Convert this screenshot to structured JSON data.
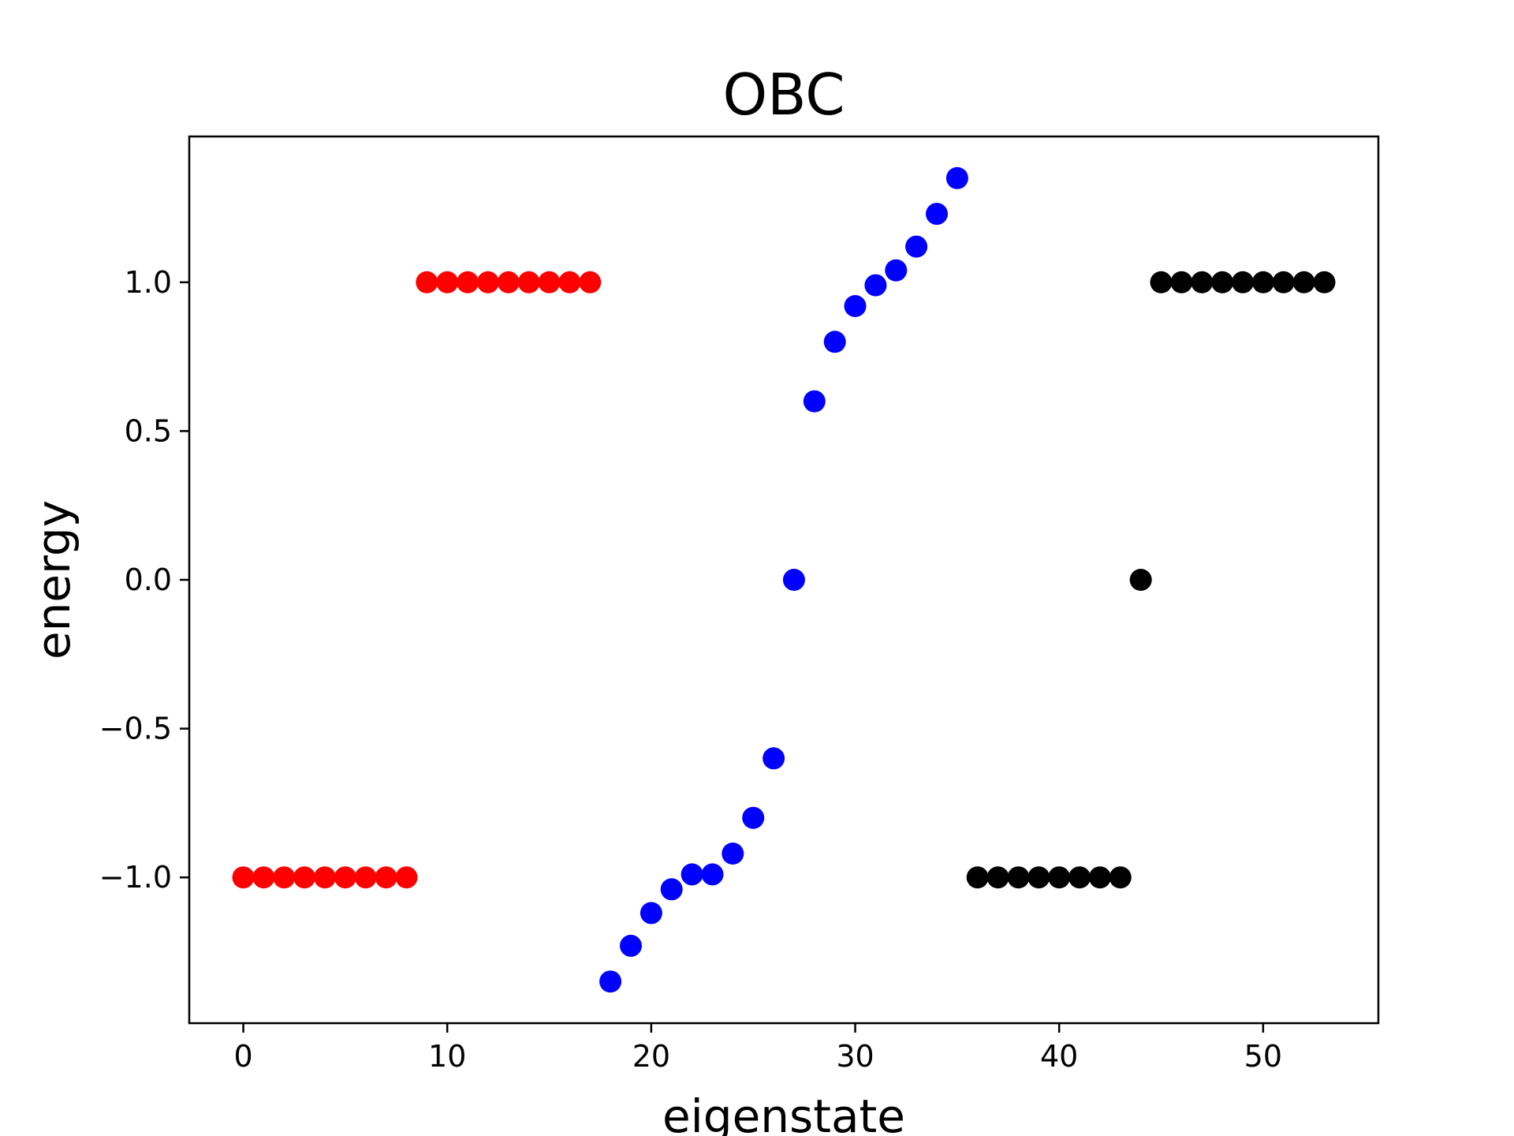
{
  "chart_data": {
    "type": "scatter",
    "title": "OBC",
    "xlabel": "eigenstate",
    "ylabel": "energy",
    "xlim": [
      -2.65,
      55.65
    ],
    "ylim": [
      -1.49,
      1.49
    ],
    "xticks": [
      0,
      10,
      20,
      30,
      40,
      50
    ],
    "xtick_labels": [
      "0",
      "10",
      "20",
      "30",
      "40",
      "50"
    ],
    "yticks": [
      -1.0,
      -0.5,
      0.0,
      0.5,
      1.0
    ],
    "ytick_labels": [
      "−1.0",
      "−0.5",
      "0.0",
      "0.5",
      "1.0"
    ],
    "grid": false,
    "legend": "none",
    "series": [
      {
        "color": "#ff0000",
        "x": [
          0,
          1,
          2,
          3,
          4,
          5,
          6,
          7,
          8,
          9,
          10,
          11,
          12,
          13,
          14,
          15,
          16,
          17
        ],
        "y": [
          -1.0,
          -1.0,
          -1.0,
          -1.0,
          -1.0,
          -1.0,
          -1.0,
          -1.0,
          -1.0,
          1.0,
          1.0,
          1.0,
          1.0,
          1.0,
          1.0,
          1.0,
          1.0,
          1.0
        ]
      },
      {
        "color": "#0000ff",
        "x": [
          18,
          19,
          20,
          21,
          22,
          23,
          24,
          25,
          26,
          27,
          28,
          29,
          30,
          31,
          32,
          33,
          34,
          35
        ],
        "y": [
          -1.35,
          -1.23,
          -1.12,
          -1.04,
          -0.99,
          -0.99,
          -0.92,
          -0.8,
          -0.6,
          0.0,
          0.6,
          0.8,
          0.92,
          0.99,
          1.04,
          1.12,
          1.23,
          1.35
        ]
      },
      {
        "color": "#000000",
        "x": [
          36,
          37,
          38,
          39,
          40,
          41,
          42,
          43,
          44,
          45,
          46,
          47,
          48,
          49,
          50,
          51,
          52,
          53
        ],
        "y": [
          -1.0,
          -1.0,
          -1.0,
          -1.0,
          -1.0,
          -1.0,
          -1.0,
          -1.0,
          0.0,
          1.0,
          1.0,
          1.0,
          1.0,
          1.0,
          1.0,
          1.0,
          1.0,
          1.0
        ]
      }
    ]
  }
}
